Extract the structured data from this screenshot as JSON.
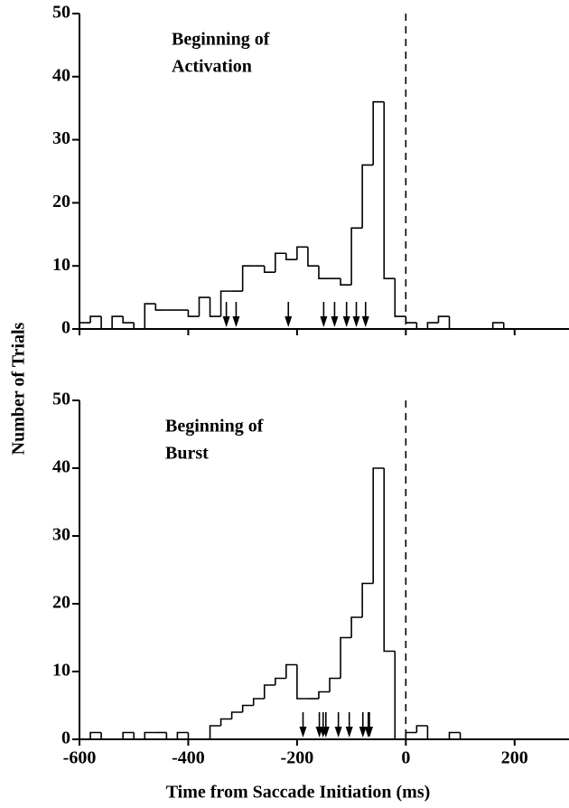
{
  "ylabel": "Number of Trials",
  "xlabel": "Time from Saccade Initiation (ms)",
  "chart_data": [
    {
      "type": "histogram",
      "annotation": [
        "Beginning of",
        "Activation"
      ],
      "color": "#000000",
      "bins": [
        -600,
        -580,
        -560,
        -540,
        -520,
        -500,
        -480,
        -460,
        -440,
        -420,
        -400,
        -380,
        -360,
        -340,
        -320,
        -300,
        -280,
        -260,
        -240,
        -220,
        -200,
        -180,
        -160,
        -140,
        -120,
        -100,
        -80,
        -60,
        -40,
        -20,
        0,
        20,
        40,
        60,
        80,
        100,
        120,
        140,
        160,
        180,
        200,
        220,
        240,
        260,
        280,
        300
      ],
      "values": [
        1,
        2,
        0,
        2,
        1,
        0,
        4,
        3,
        3,
        3,
        2,
        5,
        2,
        6,
        6,
        10,
        10,
        9,
        12,
        11,
        13,
        10,
        8,
        8,
        7,
        16,
        26,
        36,
        8,
        2,
        1,
        0,
        1,
        2,
        0,
        0,
        0,
        0,
        1,
        0,
        0,
        0,
        0,
        0,
        0
      ],
      "arrows": [
        -330,
        -312,
        -216,
        -151,
        -131,
        -109,
        -91,
        -74
      ],
      "vline": 0,
      "xlim": [
        -600,
        300
      ],
      "xticks": [
        -600,
        -400,
        -200,
        0,
        200
      ],
      "ylim": [
        0,
        50
      ],
      "yticks": [
        0,
        10,
        20,
        30,
        40,
        50
      ]
    },
    {
      "type": "histogram",
      "annotation": [
        "Beginning of",
        "Burst"
      ],
      "color": "#000000",
      "bins": [
        -600,
        -580,
        -560,
        -540,
        -520,
        -500,
        -480,
        -460,
        -440,
        -420,
        -400,
        -380,
        -360,
        -340,
        -320,
        -300,
        -280,
        -260,
        -240,
        -220,
        -200,
        -180,
        -160,
        -140,
        -120,
        -100,
        -80,
        -60,
        -40,
        -20,
        0,
        20,
        40,
        60,
        80,
        100,
        120,
        140,
        160,
        180,
        200,
        220,
        240,
        260,
        280,
        300
      ],
      "values": [
        0,
        1,
        0,
        0,
        1,
        0,
        1,
        1,
        0,
        1,
        0,
        0,
        2,
        3,
        4,
        5,
        6,
        8,
        9,
        11,
        6,
        6,
        7,
        9,
        15,
        18,
        23,
        40,
        13,
        0,
        1,
        2,
        0,
        0,
        1,
        0,
        0,
        0,
        0,
        0,
        0,
        0,
        0,
        0,
        0
      ],
      "arrows": [
        -189,
        -159,
        -152,
        -147,
        -124,
        -104,
        -79,
        -69,
        -67
      ],
      "vline": 0,
      "xlim": [
        -600,
        300
      ],
      "xticks": [
        -600,
        -400,
        -200,
        0,
        200
      ],
      "ylim": [
        0,
        50
      ],
      "yticks": [
        0,
        10,
        20,
        30,
        40,
        50
      ]
    }
  ]
}
